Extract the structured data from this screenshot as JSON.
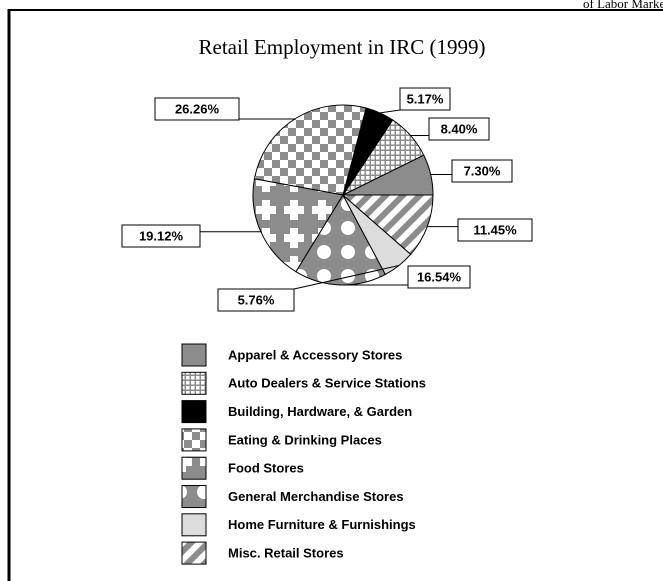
{
  "header": "of Labor Marke",
  "chart_data": {
    "type": "pie",
    "title": "Retail Employment in IRC (1999)",
    "categories": [
      "Apparel & Accessory Stores",
      "Auto Dealers & Service Stations",
      "Building, Hardware, & Garden",
      "Eating & Drinking Places",
      "Food Stores",
      "General Merchandise Stores",
      "Home Furniture & Furnishings",
      "Misc. Retail Stores"
    ],
    "values": [
      7.3,
      8.4,
      5.17,
      26.26,
      19.12,
      16.54,
      5.76,
      11.45
    ],
    "value_labels": [
      "7.30%",
      "8.40%",
      "5.17%",
      "26.26%",
      "19.12%",
      "16.54%",
      "5.76%",
      "11.45%"
    ],
    "legend": "bottom"
  }
}
